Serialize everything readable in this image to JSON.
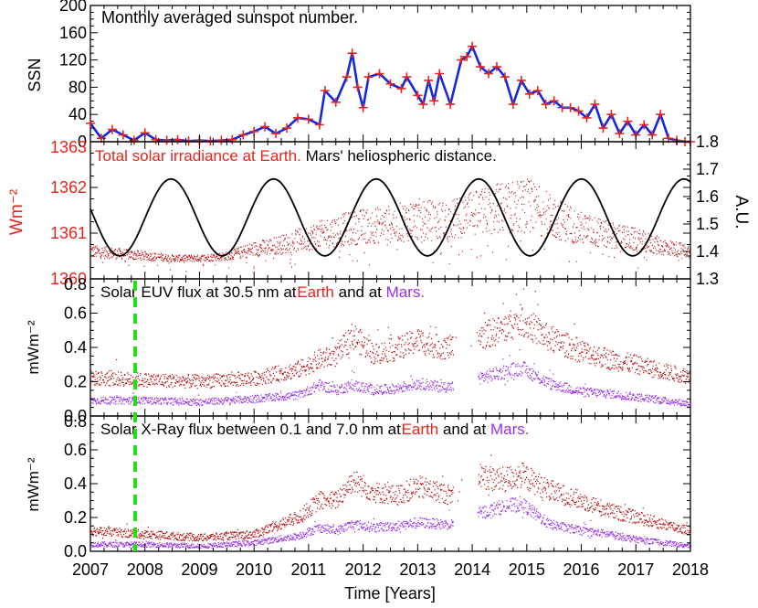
{
  "colors": {
    "red": "#e8241c",
    "blue": "#1428e0",
    "purple": "#9932e6",
    "green": "#22e010",
    "dark_red": "#b80c0c",
    "black": "#000000"
  },
  "x_axis": {
    "label": "Time [Years]",
    "ticks": [
      "2007",
      "2008",
      "2009",
      "2010",
      "2011",
      "2012",
      "2013",
      "2014",
      "2015",
      "2016",
      "2017",
      "2018"
    ],
    "range": [
      2007,
      2018
    ]
  },
  "chart_data": [
    {
      "type": "line",
      "title": "Monthly averaged sunspot number.",
      "ylabel": "SSN",
      "ylim": [
        0,
        200
      ],
      "yticks": [
        "0",
        "40",
        "80",
        "120",
        "160",
        "200"
      ],
      "series": [
        {
          "name": "SSN",
          "color": "#1428e0",
          "marker": "plus",
          "marker_color": "#e8241c",
          "x": [
            2007.0,
            2007.2,
            2007.4,
            2007.6,
            2007.8,
            2008.0,
            2008.2,
            2008.4,
            2008.6,
            2008.8,
            2009.0,
            2009.2,
            2009.4,
            2009.6,
            2009.8,
            2010.0,
            2010.2,
            2010.4,
            2010.6,
            2010.8,
            2011.0,
            2011.2,
            2011.3,
            2011.5,
            2011.7,
            2011.8,
            2011.9,
            2012.0,
            2012.1,
            2012.3,
            2012.5,
            2012.7,
            2012.8,
            2013.0,
            2013.1,
            2013.2,
            2013.3,
            2013.4,
            2013.6,
            2013.8,
            2013.9,
            2014.0,
            2014.15,
            2014.3,
            2014.45,
            2014.6,
            2014.75,
            2014.9,
            2015.05,
            2015.2,
            2015.35,
            2015.5,
            2015.65,
            2015.8,
            2015.95,
            2016.1,
            2016.25,
            2016.4,
            2016.55,
            2016.7,
            2016.85,
            2017.0,
            2017.15,
            2017.3,
            2017.45,
            2017.6,
            2017.75,
            2017.9,
            2018.0
          ],
          "y": [
            27,
            5,
            18,
            10,
            2,
            13,
            3,
            2,
            3,
            1,
            2,
            1,
            2,
            3,
            10,
            15,
            22,
            12,
            20,
            35,
            33,
            25,
            75,
            58,
            95,
            130,
            80,
            50,
            95,
            100,
            85,
            78,
            95,
            68,
            55,
            90,
            60,
            100,
            55,
            120,
            125,
            140,
            110,
            100,
            110,
            95,
            55,
            90,
            70,
            75,
            55,
            60,
            50,
            50,
            45,
            35,
            55,
            20,
            40,
            12,
            30,
            10,
            25,
            10,
            40,
            5,
            2,
            0,
            0
          ]
        }
      ]
    },
    {
      "type": "scatter",
      "title": "Total solar irradiance at Earth.",
      "title2": "Mars' heliospheric distance.",
      "ylabel": "Wm⁻²",
      "ylim": [
        1360,
        1363
      ],
      "yticks": [
        "1360",
        "1361",
        "1362",
        "1363"
      ],
      "y2label": "A.U.",
      "y2lim": [
        1.3,
        1.8
      ],
      "y2ticks": [
        "1.3",
        "1.4",
        "1.5",
        "1.6",
        "1.7",
        "1.8"
      ],
      "tsi_trend": {
        "x": [
          2007,
          2007.5,
          2008,
          2008.5,
          2009,
          2009.5,
          2010,
          2010.5,
          2011,
          2011.5,
          2012,
          2012.5,
          2013,
          2013.5,
          2014,
          2014.5,
          2015,
          2015.5,
          2016,
          2016.5,
          2017,
          2017.5,
          2018
        ],
        "y": [
          1360.6,
          1360.55,
          1360.5,
          1360.45,
          1360.45,
          1360.5,
          1360.65,
          1360.75,
          1360.9,
          1361.05,
          1361.15,
          1361.2,
          1361.3,
          1361.25,
          1361.4,
          1361.55,
          1361.6,
          1361.35,
          1361.1,
          1360.95,
          1360.85,
          1360.7,
          1360.6
        ]
      },
      "mars_distance": {
        "mean": 1.524,
        "amplitude": 0.14,
        "period_years": 1.881,
        "max_at": 2014.12
      }
    },
    {
      "type": "scatter",
      "title": "Solar EUV flux at 30.5 nm at",
      "title_earth": "Earth",
      "title_and": "and at",
      "title_mars": "Mars.",
      "ylabel": "mWm⁻²",
      "ylim": [
        0,
        0.8
      ],
      "yticks": [
        "0.0",
        "0.2",
        "0.4",
        "0.6",
        "0.8"
      ],
      "earth_trend": {
        "x": [
          2007,
          2008,
          2009,
          2010,
          2010.8,
          2011.2,
          2011.5,
          2011.8,
          2012.2,
          2012.6,
          2013,
          2013.4,
          2013.6,
          2014.1,
          2014.5,
          2014.9,
          2015.4,
          2016,
          2016.5,
          2017,
          2017.5,
          2018
        ],
        "y": [
          0.22,
          0.21,
          0.2,
          0.22,
          0.27,
          0.33,
          0.35,
          0.47,
          0.36,
          0.39,
          0.44,
          0.4,
          0.4,
          0.46,
          0.5,
          0.56,
          0.45,
          0.38,
          0.33,
          0.3,
          0.26,
          0.23
        ]
      },
      "mars_trend": {
        "x": [
          2007,
          2008,
          2009,
          2010,
          2010.8,
          2011.2,
          2011.5,
          2011.8,
          2012.2,
          2012.6,
          2013,
          2013.4,
          2013.6,
          2014.1,
          2014.5,
          2014.9,
          2015.4,
          2016,
          2016.5,
          2017,
          2017.5,
          2018
        ],
        "y": [
          0.09,
          0.09,
          0.08,
          0.1,
          0.12,
          0.18,
          0.15,
          0.18,
          0.15,
          0.16,
          0.19,
          0.17,
          0.17,
          0.22,
          0.25,
          0.28,
          0.19,
          0.14,
          0.13,
          0.11,
          0.09,
          0.07
        ]
      },
      "gap": [
        2013.65,
        2014.1
      ]
    },
    {
      "type": "scatter",
      "title": "Solar X-Ray flux between 0.1 and 7.0 nm at",
      "title_earth": "Earth",
      "title_and": "and at",
      "title_mars": "Mars.",
      "ylabel": "mWm⁻²",
      "ylim": [
        0,
        0.8
      ],
      "yticks": [
        "0.0",
        "0.2",
        "0.4",
        "0.6",
        "0.8"
      ],
      "earth_trend": {
        "x": [
          2007,
          2008,
          2009,
          2010,
          2010.8,
          2011.2,
          2011.5,
          2011.8,
          2012.2,
          2012.6,
          2013,
          2013.4,
          2013.6,
          2014.1,
          2014.5,
          2014.9,
          2015.4,
          2016,
          2016.5,
          2017,
          2017.5,
          2018
        ],
        "y": [
          0.12,
          0.1,
          0.08,
          0.1,
          0.2,
          0.3,
          0.3,
          0.42,
          0.35,
          0.33,
          0.38,
          0.35,
          0.33,
          0.45,
          0.42,
          0.45,
          0.36,
          0.3,
          0.24,
          0.2,
          0.16,
          0.12
        ]
      },
      "mars_trend": {
        "x": [
          2007,
          2008,
          2009,
          2010,
          2010.8,
          2011.2,
          2011.5,
          2011.8,
          2012.2,
          2012.6,
          2013,
          2013.4,
          2013.6,
          2014.1,
          2014.5,
          2014.9,
          2015.4,
          2016,
          2016.5,
          2017,
          2017.5,
          2018
        ],
        "y": [
          0.04,
          0.04,
          0.03,
          0.05,
          0.09,
          0.14,
          0.12,
          0.16,
          0.14,
          0.15,
          0.17,
          0.16,
          0.16,
          0.22,
          0.26,
          0.28,
          0.16,
          0.12,
          0.1,
          0.07,
          0.05,
          0.03
        ]
      },
      "gap": [
        2013.65,
        2014.1
      ]
    }
  ],
  "marker_line": {
    "x": 2007.82,
    "color": "#22e010",
    "style": "dashed"
  }
}
